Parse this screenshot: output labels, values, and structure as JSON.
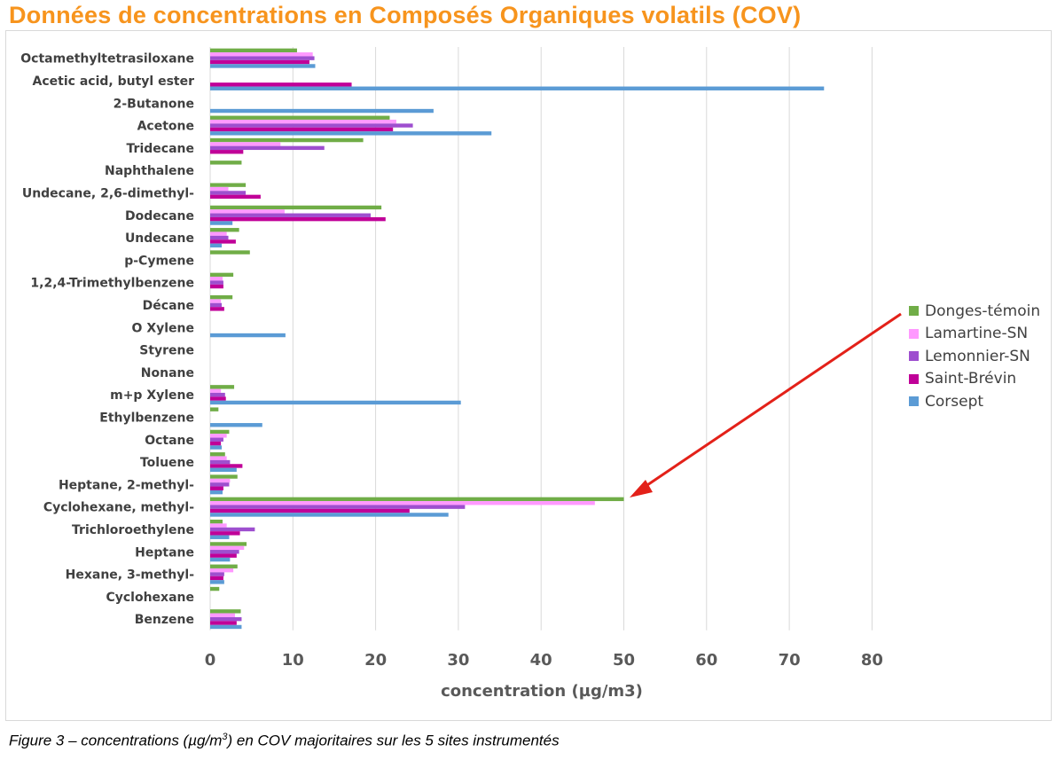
{
  "page": {
    "title": "Données de concentrations en Composés Organiques volatils (COV)",
    "caption_prefix": "Figure 3 – concentrations (µg/m",
    "caption_sup": "3",
    "caption_suffix": ") en COV majoritaires sur les 5 sites instrumentés"
  },
  "annotation": {
    "type": "arrow",
    "color": "#e32119",
    "points_to": "Cyclohexane, methyl- / Donges-témoin"
  },
  "chart_data": {
    "type": "bar",
    "orientation": "horizontal",
    "title": "",
    "xlabel": "concentration (µg/m3)",
    "ylabel": "",
    "xlim": [
      0,
      80
    ],
    "xticks": [
      "0",
      "10",
      "20",
      "30",
      "40",
      "50",
      "60",
      "70",
      "80"
    ],
    "grid": "vertical",
    "legend_position": "right",
    "categories": [
      "Octamethyltetrasiloxane",
      "Acetic acid, butyl ester",
      "2-Butanone",
      "Acetone",
      "Tridecane",
      "Naphthalene",
      "Undecane, 2,6-dimethyl-",
      "Dodecane",
      "Undecane",
      "p-Cymene",
      "1,2,4-Trimethylbenzene",
      "Décane",
      "O Xylene",
      "Styrene",
      "Nonane",
      "m+p Xylene",
      "Ethylbenzene",
      "Octane",
      "Toluene",
      "Heptane, 2-methyl-",
      "Cyclohexane, methyl-",
      "Trichloroethylene",
      "Heptane",
      "Hexane, 3-methyl-",
      "Cyclohexane",
      "Benzene"
    ],
    "series": [
      {
        "name": "Donges-témoin",
        "color": "#70ad47",
        "values": [
          10.5,
          0,
          0,
          21.7,
          18.5,
          3.8,
          4.3,
          20.7,
          3.5,
          4.8,
          2.8,
          2.7,
          0,
          0,
          0,
          2.9,
          1.0,
          2.3,
          1.8,
          3.3,
          50.0,
          1.5,
          4.4,
          3.3,
          1.1,
          3.7
        ]
      },
      {
        "name": "Lamartine-SN",
        "color": "#ff99ff",
        "values": [
          12.4,
          0,
          0,
          22.5,
          8.5,
          0,
          2.2,
          9.0,
          2.0,
          0,
          1.5,
          1.3,
          0,
          0,
          0,
          1.3,
          0,
          2.0,
          2.0,
          2.4,
          46.5,
          2.0,
          4.1,
          2.8,
          0,
          3.0
        ]
      },
      {
        "name": "Lemonnier-SN",
        "color": "#9e4fcf",
        "values": [
          12.6,
          0,
          0,
          24.5,
          13.8,
          0,
          4.3,
          19.4,
          2.2,
          0,
          1.6,
          1.4,
          0,
          0,
          0,
          1.8,
          0,
          1.6,
          2.4,
          2.3,
          30.8,
          5.4,
          3.5,
          1.7,
          0,
          3.8
        ]
      },
      {
        "name": "Saint-Brévin",
        "color": "#c00098",
        "values": [
          12.0,
          17.1,
          0,
          22.1,
          4.0,
          0,
          6.1,
          21.2,
          3.1,
          0,
          1.6,
          1.7,
          0,
          0,
          0,
          1.9,
          0,
          1.3,
          3.9,
          1.6,
          24.1,
          3.6,
          3.2,
          1.6,
          0,
          3.2
        ]
      },
      {
        "name": "Corsept",
        "color": "#5b9bd5",
        "values": [
          12.7,
          74.2,
          27.0,
          34.0,
          0,
          0,
          0,
          2.7,
          1.4,
          0,
          0,
          0,
          9.1,
          0,
          0,
          30.3,
          6.3,
          1.4,
          3.2,
          1.5,
          28.8,
          2.3,
          2.4,
          1.7,
          0,
          3.8
        ]
      }
    ]
  }
}
